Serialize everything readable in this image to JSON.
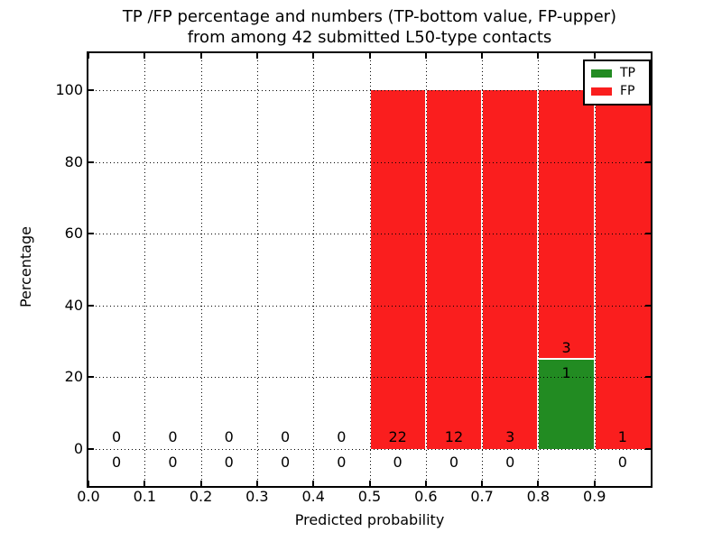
{
  "chart_data": {
    "type": "bar",
    "stacked": true,
    "title_line1": "TP /FP percentage and numbers (TP-bottom value, FP-upper)",
    "title_line2": "from among 42 submitted L50-type contacts",
    "xlabel": "Predicted probability",
    "ylabel": "Percentage",
    "xlim": [
      0.0,
      1.0
    ],
    "ylim": [
      -10,
      110
    ],
    "grid": "dotted-both-axes",
    "legend_position": "upper-right",
    "total_submitted": 42,
    "bin_edges": [
      0.0,
      0.1,
      0.2,
      0.3,
      0.4,
      0.5,
      0.6,
      0.7,
      0.8,
      0.9,
      1.0
    ],
    "x_tick_values": [
      0.0,
      0.1,
      0.2,
      0.3,
      0.4,
      0.5,
      0.6,
      0.7,
      0.8,
      0.9
    ],
    "x_tick_labels": [
      "0.0",
      "0.1",
      "0.2",
      "0.3",
      "0.4",
      "0.5",
      "0.6",
      "0.7",
      "0.8",
      "0.9"
    ],
    "y_tick_values": [
      0,
      20,
      40,
      60,
      80,
      100
    ],
    "y_tick_labels": [
      "0",
      "20",
      "40",
      "60",
      "80",
      "100"
    ],
    "series": [
      {
        "name": "TP",
        "color": "#228b22",
        "percentages": [
          0,
          0,
          0,
          0,
          0,
          0,
          0,
          0,
          25,
          0
        ],
        "counts": [
          0,
          0,
          0,
          0,
          0,
          0,
          0,
          0,
          1,
          0
        ]
      },
      {
        "name": "FP",
        "color": "#fa1e1e",
        "percentages": [
          0,
          0,
          0,
          0,
          0,
          100,
          100,
          100,
          75,
          100
        ],
        "counts": [
          0,
          0,
          0,
          0,
          0,
          22,
          12,
          3,
          3,
          1
        ]
      }
    ]
  }
}
